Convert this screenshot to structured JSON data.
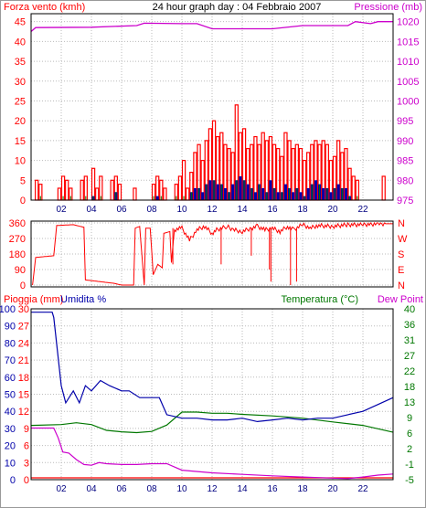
{
  "colors": {
    "wind": "#ff0000",
    "gust": "#ff0000",
    "pressure": "#cc00cc",
    "direction": "#ff0000",
    "humidity": "#0000aa",
    "temperature": "#007700",
    "rain": "#ff0000",
    "dewpoint": "#cc00cc",
    "grid": "#bbbbbb",
    "frame": "#000000"
  },
  "chart_data": [
    {
      "type": "bar",
      "title": "24 hour graph day : 04 Febbraio 2007",
      "left_label": "Forza vento (kmh)",
      "right_label": "Pressione (mb)",
      "x_ticks": [
        "02",
        "04",
        "06",
        "08",
        "10",
        "12",
        "14",
        "16",
        "18",
        "20",
        "22"
      ],
      "left_ticks": [
        "0",
        "5",
        "10",
        "15",
        "20",
        "25",
        "30",
        "35",
        "40",
        "45"
      ],
      "right_ticks": [
        "975",
        "980",
        "985",
        "990",
        "995",
        "1000",
        "1005",
        "1010",
        "1015",
        "1020"
      ],
      "ylim_left": [
        0,
        47
      ],
      "ylim_right": [
        975,
        1022
      ],
      "xlim_hours": [
        0,
        24
      ],
      "wind_average": [
        0,
        0,
        0,
        0,
        0,
        0,
        0,
        0,
        0,
        0,
        0,
        0,
        0,
        0,
        0,
        0,
        1,
        0,
        0,
        0,
        0,
        0,
        2,
        0,
        0,
        0,
        0,
        0,
        0,
        0,
        0,
        0,
        0,
        1,
        0,
        0,
        0,
        0,
        0,
        0,
        0,
        0,
        2,
        3,
        3,
        2,
        4,
        5,
        5,
        4,
        4,
        3,
        2,
        4,
        5,
        6,
        5,
        4,
        3,
        2,
        4,
        3,
        2,
        5,
        3,
        2,
        2,
        4,
        3,
        2,
        3,
        2,
        1,
        3,
        4,
        5,
        4,
        3,
        3,
        2,
        3,
        4,
        3,
        3,
        1,
        0,
        0,
        0,
        0,
        0,
        0,
        0,
        0,
        0,
        0,
        0
      ],
      "wind_gust": [
        0,
        5,
        4,
        0,
        0,
        0,
        0,
        3,
        6,
        5,
        3,
        0,
        0,
        5,
        6,
        0,
        8,
        3,
        6,
        0,
        0,
        5,
        6,
        4,
        0,
        0,
        0,
        3,
        0,
        0,
        0,
        0,
        4,
        6,
        5,
        3,
        0,
        0,
        4,
        6,
        10,
        3,
        7,
        12,
        14,
        10,
        15,
        18,
        20,
        16,
        17,
        14,
        13,
        12,
        24,
        17,
        18,
        13,
        14,
        16,
        14,
        17,
        15,
        16,
        14,
        13,
        11,
        17,
        15,
        13,
        14,
        13,
        10,
        12,
        14,
        15,
        14,
        15,
        14,
        10,
        11,
        15,
        12,
        13,
        8,
        6,
        5,
        0,
        0,
        0,
        0,
        0,
        0,
        6,
        0,
        0
      ],
      "pressure": [
        [
          0,
          1017.5
        ],
        [
          0.3,
          1018.5
        ],
        [
          4,
          1018.6
        ],
        [
          7,
          1019
        ],
        [
          7.5,
          1019.6
        ],
        [
          10,
          1019.5
        ],
        [
          11,
          1019.5
        ],
        [
          12,
          1018.2
        ],
        [
          16,
          1018.2
        ],
        [
          18,
          1019
        ],
        [
          21,
          1019
        ],
        [
          21.5,
          1020
        ],
        [
          22.5,
          1019.5
        ],
        [
          23,
          1020
        ],
        [
          24,
          1020
        ]
      ]
    },
    {
      "type": "line",
      "left_ticks": [
        "0",
        "90",
        "180",
        "270",
        "360"
      ],
      "right_ticks": [
        "N",
        "W",
        "S",
        "E",
        "N"
      ],
      "ylim": [
        0,
        360
      ],
      "direction": [
        [
          0.1,
          0
        ],
        [
          0.3,
          160
        ],
        [
          1.5,
          170
        ],
        [
          1.7,
          345
        ],
        [
          2.8,
          350
        ],
        [
          3.5,
          335
        ],
        [
          3.6,
          30
        ],
        [
          5.5,
          10
        ],
        [
          6,
          0
        ],
        [
          6.8,
          0
        ],
        [
          6.9,
          330
        ],
        [
          7.2,
          340
        ],
        [
          7.5,
          0
        ],
        [
          7.6,
          330
        ],
        [
          7.9,
          330
        ],
        [
          8.1,
          60
        ],
        [
          8.4,
          120
        ],
        [
          8.7,
          100
        ],
        [
          8.8,
          300
        ],
        [
          9.2,
          310
        ],
        [
          9.3,
          130
        ],
        [
          9.5,
          320
        ],
        [
          10,
          330
        ],
        [
          10.5,
          260
        ],
        [
          11,
          320
        ],
        [
          11.5,
          340
        ],
        [
          12,
          300
        ],
        [
          12.3,
          320
        ],
        [
          13,
          340
        ],
        [
          13.4,
          320
        ],
        [
          14,
          310
        ],
        [
          14.6,
          330
        ],
        [
          15,
          340
        ],
        [
          15.5,
          320
        ],
        [
          16,
          330
        ],
        [
          16.5,
          310
        ],
        [
          17,
          340
        ],
        [
          17.4,
          320
        ],
        [
          18,
          350
        ],
        [
          18.5,
          330
        ],
        [
          19,
          345
        ],
        [
          20,
          340
        ],
        [
          21,
          350
        ],
        [
          22,
          350
        ],
        [
          23,
          355
        ],
        [
          24,
          355
        ]
      ],
      "direction_spikes": [
        [
          9.4,
          120
        ],
        [
          12.6,
          120
        ],
        [
          14.6,
          170
        ],
        [
          15.8,
          90
        ],
        [
          15.9,
          20
        ],
        [
          17.2,
          0
        ],
        [
          17.6,
          20
        ]
      ]
    },
    {
      "type": "line",
      "left_label": "Pioggia (mm)",
      "left2_label": "Umidita %",
      "right_label": "Temperatura (°C)",
      "right2_label": "Dew Point",
      "rain_ticks": [
        "0",
        "3",
        "6",
        "9",
        "12",
        "15",
        "18",
        "21",
        "24",
        "27",
        "30"
      ],
      "humidity_ticks": [
        "0",
        "10",
        "20",
        "30",
        "40",
        "50",
        "60",
        "70",
        "80",
        "90",
        "100"
      ],
      "temp_ticks": [
        "-5",
        "-1",
        "2",
        "6",
        "9",
        "13",
        "18",
        "22",
        "27",
        "31",
        "36",
        "40"
      ],
      "temp_range": [
        -5,
        40
      ],
      "humidity": [
        [
          0,
          98
        ],
        [
          1.4,
          98
        ],
        [
          1.5,
          95
        ],
        [
          2,
          55
        ],
        [
          2.3,
          45
        ],
        [
          2.8,
          52
        ],
        [
          3.2,
          45
        ],
        [
          3.6,
          55
        ],
        [
          4,
          52
        ],
        [
          4.6,
          58
        ],
        [
          5.2,
          55
        ],
        [
          6,
          52
        ],
        [
          6.5,
          52
        ],
        [
          7.2,
          48
        ],
        [
          8,
          48
        ],
        [
          8.5,
          48
        ],
        [
          9,
          38
        ],
        [
          10,
          36
        ],
        [
          11,
          36
        ],
        [
          12,
          35
        ],
        [
          13,
          35
        ],
        [
          14,
          36
        ],
        [
          15,
          34
        ],
        [
          16,
          35
        ],
        [
          17,
          36
        ],
        [
          18,
          35
        ],
        [
          19,
          36
        ],
        [
          20,
          36
        ],
        [
          21,
          38
        ],
        [
          22,
          40
        ],
        [
          23,
          44
        ],
        [
          24,
          48
        ]
      ],
      "temperature": [
        [
          0,
          9.3
        ],
        [
          2,
          9.5
        ],
        [
          3,
          10
        ],
        [
          4,
          9.5
        ],
        [
          5,
          8.0
        ],
        [
          6,
          7.6
        ],
        [
          7,
          7.4
        ],
        [
          8,
          7.7
        ],
        [
          9,
          9.4
        ],
        [
          10,
          12.8
        ],
        [
          11,
          12.8
        ],
        [
          12,
          12.5
        ],
        [
          13,
          12.5
        ],
        [
          14,
          12.2
        ],
        [
          16,
          11.8
        ],
        [
          18,
          11.2
        ],
        [
          20,
          10.2
        ],
        [
          22,
          9.3
        ],
        [
          24,
          7.5
        ]
      ],
      "dewpoint": [
        [
          0,
          8.6
        ],
        [
          1.5,
          8.6
        ],
        [
          1.8,
          6
        ],
        [
          2.1,
          2.3
        ],
        [
          2.5,
          2.0
        ],
        [
          3,
          0.3
        ],
        [
          3.5,
          -1.0
        ],
        [
          4,
          -1.2
        ],
        [
          4.5,
          -0.5
        ],
        [
          5,
          -0.8
        ],
        [
          6,
          -1.0
        ],
        [
          7,
          -1.0
        ],
        [
          8,
          -0.8
        ],
        [
          9,
          -0.8
        ],
        [
          10,
          -2.5
        ],
        [
          12,
          -3.2
        ],
        [
          14,
          -3.6
        ],
        [
          16,
          -4.0
        ],
        [
          18,
          -4.3
        ],
        [
          20,
          -4.6
        ],
        [
          21,
          -4.7
        ],
        [
          22,
          -4.3
        ],
        [
          23,
          -3.8
        ],
        [
          24,
          -3.5
        ]
      ],
      "rain": [
        [
          0,
          0
        ],
        [
          24,
          0
        ]
      ]
    }
  ]
}
